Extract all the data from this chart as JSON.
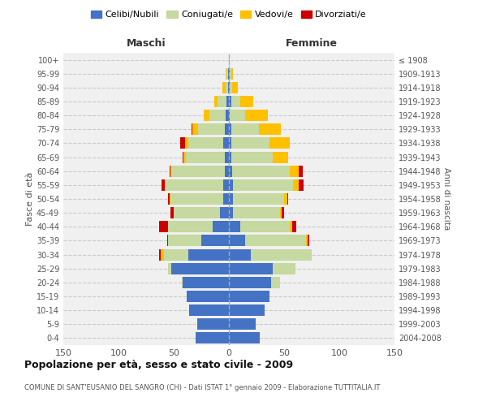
{
  "age_groups": [
    "0-4",
    "5-9",
    "10-14",
    "15-19",
    "20-24",
    "25-29",
    "30-34",
    "35-39",
    "40-44",
    "45-49",
    "50-54",
    "55-59",
    "60-64",
    "65-69",
    "70-74",
    "75-79",
    "80-84",
    "85-89",
    "90-94",
    "95-99",
    "100+"
  ],
  "birth_years": [
    "2004-2008",
    "1999-2003",
    "1994-1998",
    "1989-1993",
    "1984-1988",
    "1979-1983",
    "1974-1978",
    "1969-1973",
    "1964-1968",
    "1959-1963",
    "1954-1958",
    "1949-1953",
    "1944-1948",
    "1939-1943",
    "1934-1938",
    "1929-1933",
    "1924-1928",
    "1919-1923",
    "1914-1918",
    "1909-1913",
    "≤ 1908"
  ],
  "male": {
    "celibe": [
      30,
      29,
      36,
      38,
      42,
      52,
      37,
      25,
      15,
      8,
      5,
      5,
      4,
      4,
      5,
      4,
      3,
      2,
      1,
      1,
      0
    ],
    "coniugato": [
      0,
      0,
      0,
      0,
      1,
      3,
      22,
      30,
      40,
      42,
      48,
      52,
      48,
      35,
      32,
      24,
      15,
      8,
      2,
      1,
      0
    ],
    "vedovo": [
      0,
      0,
      0,
      0,
      0,
      0,
      3,
      0,
      0,
      0,
      1,
      1,
      1,
      2,
      3,
      5,
      5,
      3,
      3,
      1,
      0
    ],
    "divorziato": [
      0,
      0,
      0,
      0,
      0,
      0,
      1,
      1,
      8,
      3,
      1,
      3,
      1,
      1,
      4,
      1,
      0,
      0,
      0,
      0,
      0
    ]
  },
  "female": {
    "nubile": [
      28,
      24,
      32,
      37,
      38,
      40,
      20,
      15,
      10,
      4,
      4,
      4,
      3,
      2,
      2,
      2,
      1,
      2,
      1,
      1,
      0
    ],
    "coniugata": [
      0,
      0,
      0,
      0,
      8,
      20,
      55,
      55,
      45,
      42,
      46,
      54,
      52,
      38,
      35,
      25,
      14,
      8,
      2,
      1,
      0
    ],
    "vedova": [
      0,
      0,
      0,
      0,
      0,
      0,
      0,
      1,
      2,
      2,
      3,
      5,
      8,
      14,
      18,
      20,
      20,
      12,
      5,
      2,
      1
    ],
    "divorziata": [
      0,
      0,
      0,
      0,
      0,
      0,
      0,
      2,
      4,
      2,
      1,
      5,
      4,
      0,
      0,
      0,
      0,
      0,
      0,
      0,
      0
    ]
  },
  "colors": {
    "celibe": "#4472c4",
    "coniugato": "#c5d9a0",
    "vedovo": "#ffc000",
    "divorziato": "#cc0000"
  },
  "title": "Popolazione per età, sesso e stato civile - 2009",
  "subtitle": "COMUNE DI SANT'EUSANIO DEL SANGRO (CH) - Dati ISTAT 1° gennaio 2009 - Elaborazione TUTTITALIA.IT",
  "xlabel_left": "Maschi",
  "xlabel_right": "Femmine",
  "ylabel_left": "Fasce di età",
  "ylabel_right": "Anni di nascita",
  "xlim": 150,
  "background_color": "#f0f0f0",
  "legend_labels": [
    "Celibi/Nubili",
    "Coniugati/e",
    "Vedovi/e",
    "Divorziati/e"
  ]
}
